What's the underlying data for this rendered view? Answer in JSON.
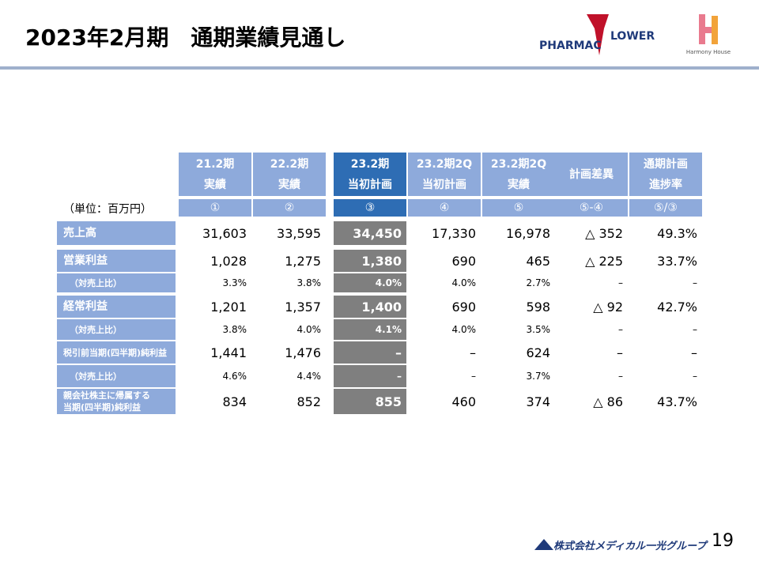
{
  "header": {
    "title": "2023年2月期　通期業績見通し",
    "logo_left": [
      "PHARMAC",
      "LOWER"
    ],
    "logo_right": "Harmony House"
  },
  "table": {
    "unit": "（単位：百万円）",
    "columns": [
      [
        "21.2期",
        "実績"
      ],
      [
        "22.2期",
        "実績"
      ],
      [
        "23.2期",
        "当初計画"
      ],
      [
        "23.2期2Q",
        "当初計画"
      ],
      [
        "23.2期2Q",
        "実績"
      ],
      [
        "計画差異"
      ],
      [
        "通期計画",
        "進捗率"
      ]
    ],
    "index": [
      "①",
      "②",
      "③",
      "④",
      "⑤",
      "⑤-④",
      "⑤/③"
    ],
    "rows": [
      {
        "label": [
          "売上高"
        ],
        "values": [
          "31,603",
          "33,595",
          "34,450",
          "17,330",
          "16,978",
          "△ 352",
          "49.3%"
        ]
      },
      {
        "label": [
          "営業利益"
        ],
        "values": [
          "1,028",
          "1,275",
          "1,380",
          "690",
          "465",
          "△ 225",
          "33.7%"
        ]
      },
      {
        "label": [
          "（対売上比）"
        ],
        "values": [
          "3.3%",
          "3.8%",
          "4.0%",
          "4.0%",
          "2.7%",
          "–",
          "–"
        ]
      },
      {
        "label": [
          "経常利益"
        ],
        "values": [
          "1,201",
          "1,357",
          "1,400",
          "690",
          "598",
          "△ 92",
          "42.7%"
        ]
      },
      {
        "label": [
          "（対売上比）"
        ],
        "values": [
          "3.8%",
          "4.0%",
          "4.1%",
          "4.0%",
          "3.5%",
          "–",
          "–"
        ]
      },
      {
        "label": [
          "税引前当期(四半期)純利益"
        ],
        "values": [
          "1,441",
          "1,476",
          "–",
          "–",
          "624",
          "–",
          "–"
        ]
      },
      {
        "label": [
          "（対売上比）"
        ],
        "values": [
          "4.6%",
          "4.4%",
          "–",
          "–",
          "3.7%",
          "–",
          "–"
        ]
      },
      {
        "label": [
          "親会社株主に帰属する",
          "当期(四半期)純利益"
        ],
        "values": [
          "834",
          "852",
          "855",
          "460",
          "374",
          "△ 86",
          "43.7%"
        ]
      }
    ]
  },
  "footer": {
    "company": "株式会社メディカル一光グループ",
    "page": "19"
  }
}
